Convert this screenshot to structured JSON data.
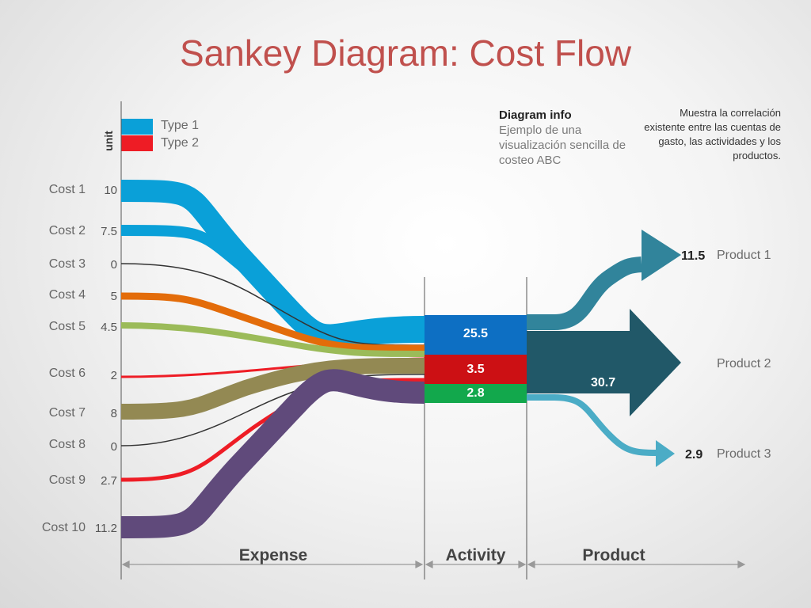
{
  "title": "Sankey Diagram: Cost Flow",
  "unit_label": "unit",
  "legend": [
    {
      "label": "Type 1",
      "color": "#0aa0d8"
    },
    {
      "label": "Type 2",
      "color": "#ee1c25"
    }
  ],
  "diagram_info": {
    "title": "Diagram info",
    "body": "Ejemplo de una visualización sencilla de costeo ABC"
  },
  "correlation_text": "Muestra la correlación existente entre las cuentas de gasto, las actividades y los productos.",
  "costs": [
    {
      "name": "Cost 1",
      "value": "10",
      "color": "#0aa0d8"
    },
    {
      "name": "Cost 2",
      "value": "7.5",
      "color": "#0aa0d8"
    },
    {
      "name": "Cost 3",
      "value": "0",
      "color": "#333333"
    },
    {
      "name": "Cost 4",
      "value": "5",
      "color": "#e36c0a"
    },
    {
      "name": "Cost 5",
      "value": "4.5",
      "color": "#9bbb59"
    },
    {
      "name": "Cost 6",
      "value": "2",
      "color": "#ee1c25"
    },
    {
      "name": "Cost 7",
      "value": "8",
      "color": "#938953"
    },
    {
      "name": "Cost 8",
      "value": "0",
      "color": "#333333"
    },
    {
      "name": "Cost 9",
      "value": "2.7",
      "color": "#ee1c25"
    },
    {
      "name": "Cost 10",
      "value": "11.2",
      "color": "#604a7b"
    }
  ],
  "activities": [
    {
      "value": "25.5",
      "color": "#0d6fc3"
    },
    {
      "value": "3.5",
      "color": "#cc1014"
    },
    {
      "value": "2.8",
      "color": "#12a84c"
    }
  ],
  "products": [
    {
      "name": "Product 1",
      "value": "11.5",
      "color": "#31849b"
    },
    {
      "name": "Product 2",
      "value": "30.7",
      "color": "#215868"
    },
    {
      "name": "Product 3",
      "value": "2.9",
      "color": "#4bacc6"
    }
  ],
  "sections": {
    "expense": "Expense",
    "activity": "Activity",
    "product": "Product"
  }
}
